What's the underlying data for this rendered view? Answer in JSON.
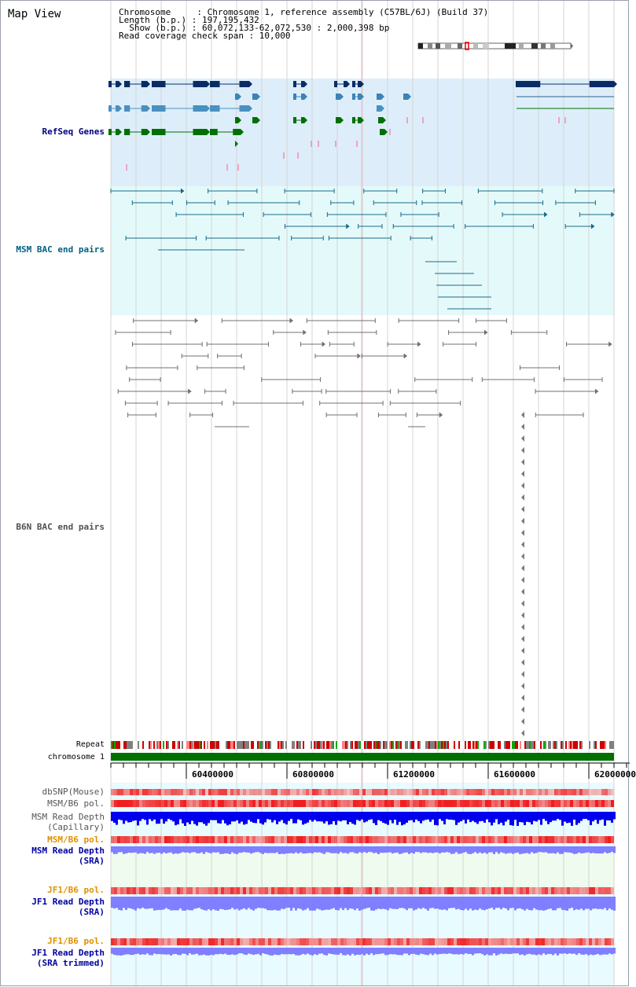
{
  "view": {
    "title": "Map View"
  },
  "info": {
    "line1": "Chromosome     : Chromosome 1, reference assembly (C57BL/6J) (Build 37)",
    "line2": "Length (b.p.) : 197,195,432",
    "line3": "  Show (b.p.) : 60,072,133-62,072,530 : 2,000,398 bp",
    "line4": "Read coverage check span : 10,000"
  },
  "tracks": {
    "refseq": "RefSeq Genes",
    "msm_bac": "MSM BAC end pairs",
    "b6n_bac": "B6N BAC end pairs",
    "repeat": "Repeat",
    "chromosome": "chromosome 1",
    "dbsnp": "dbSNP(Mouse)",
    "msm_pol": "MSM/B6 pol.",
    "msm_depth_cap_1": "MSM Read Depth",
    "msm_depth_cap_2": "(Capillary)",
    "msm_pol_sra": "MSM/B6 pol.",
    "msm_depth_sra_1": "MSM Read Depth",
    "msm_depth_sra_2": "(SRA)",
    "jf1_pol": "JF1/B6 pol.",
    "jf1_depth_1": "JF1 Read Depth",
    "jf1_depth_2": "(SRA)",
    "jf1_pol_trim": "JF1/B6 pol.",
    "jf1_trim_1": "JF1 Read Depth",
    "jf1_trim_2": "(SRA trimmed)"
  },
  "axis": {
    "ticks": [
      "60400000",
      "60800000",
      "61200000",
      "61600000",
      "62000000"
    ]
  },
  "colors": {
    "refseq_bg": "#ddeefa",
    "msm_bg": "#e4fafa",
    "b6n_bg": "#ffffff",
    "chromosome": "#007000",
    "depth_capillary": "#0000ee",
    "depth_sra": "#7f7fff",
    "msm_label": "#006080",
    "refseq_label": "#000080",
    "b6n_label": "#606060",
    "pol_label": "#e09000",
    "depth_label": "#0000a0"
  }
}
